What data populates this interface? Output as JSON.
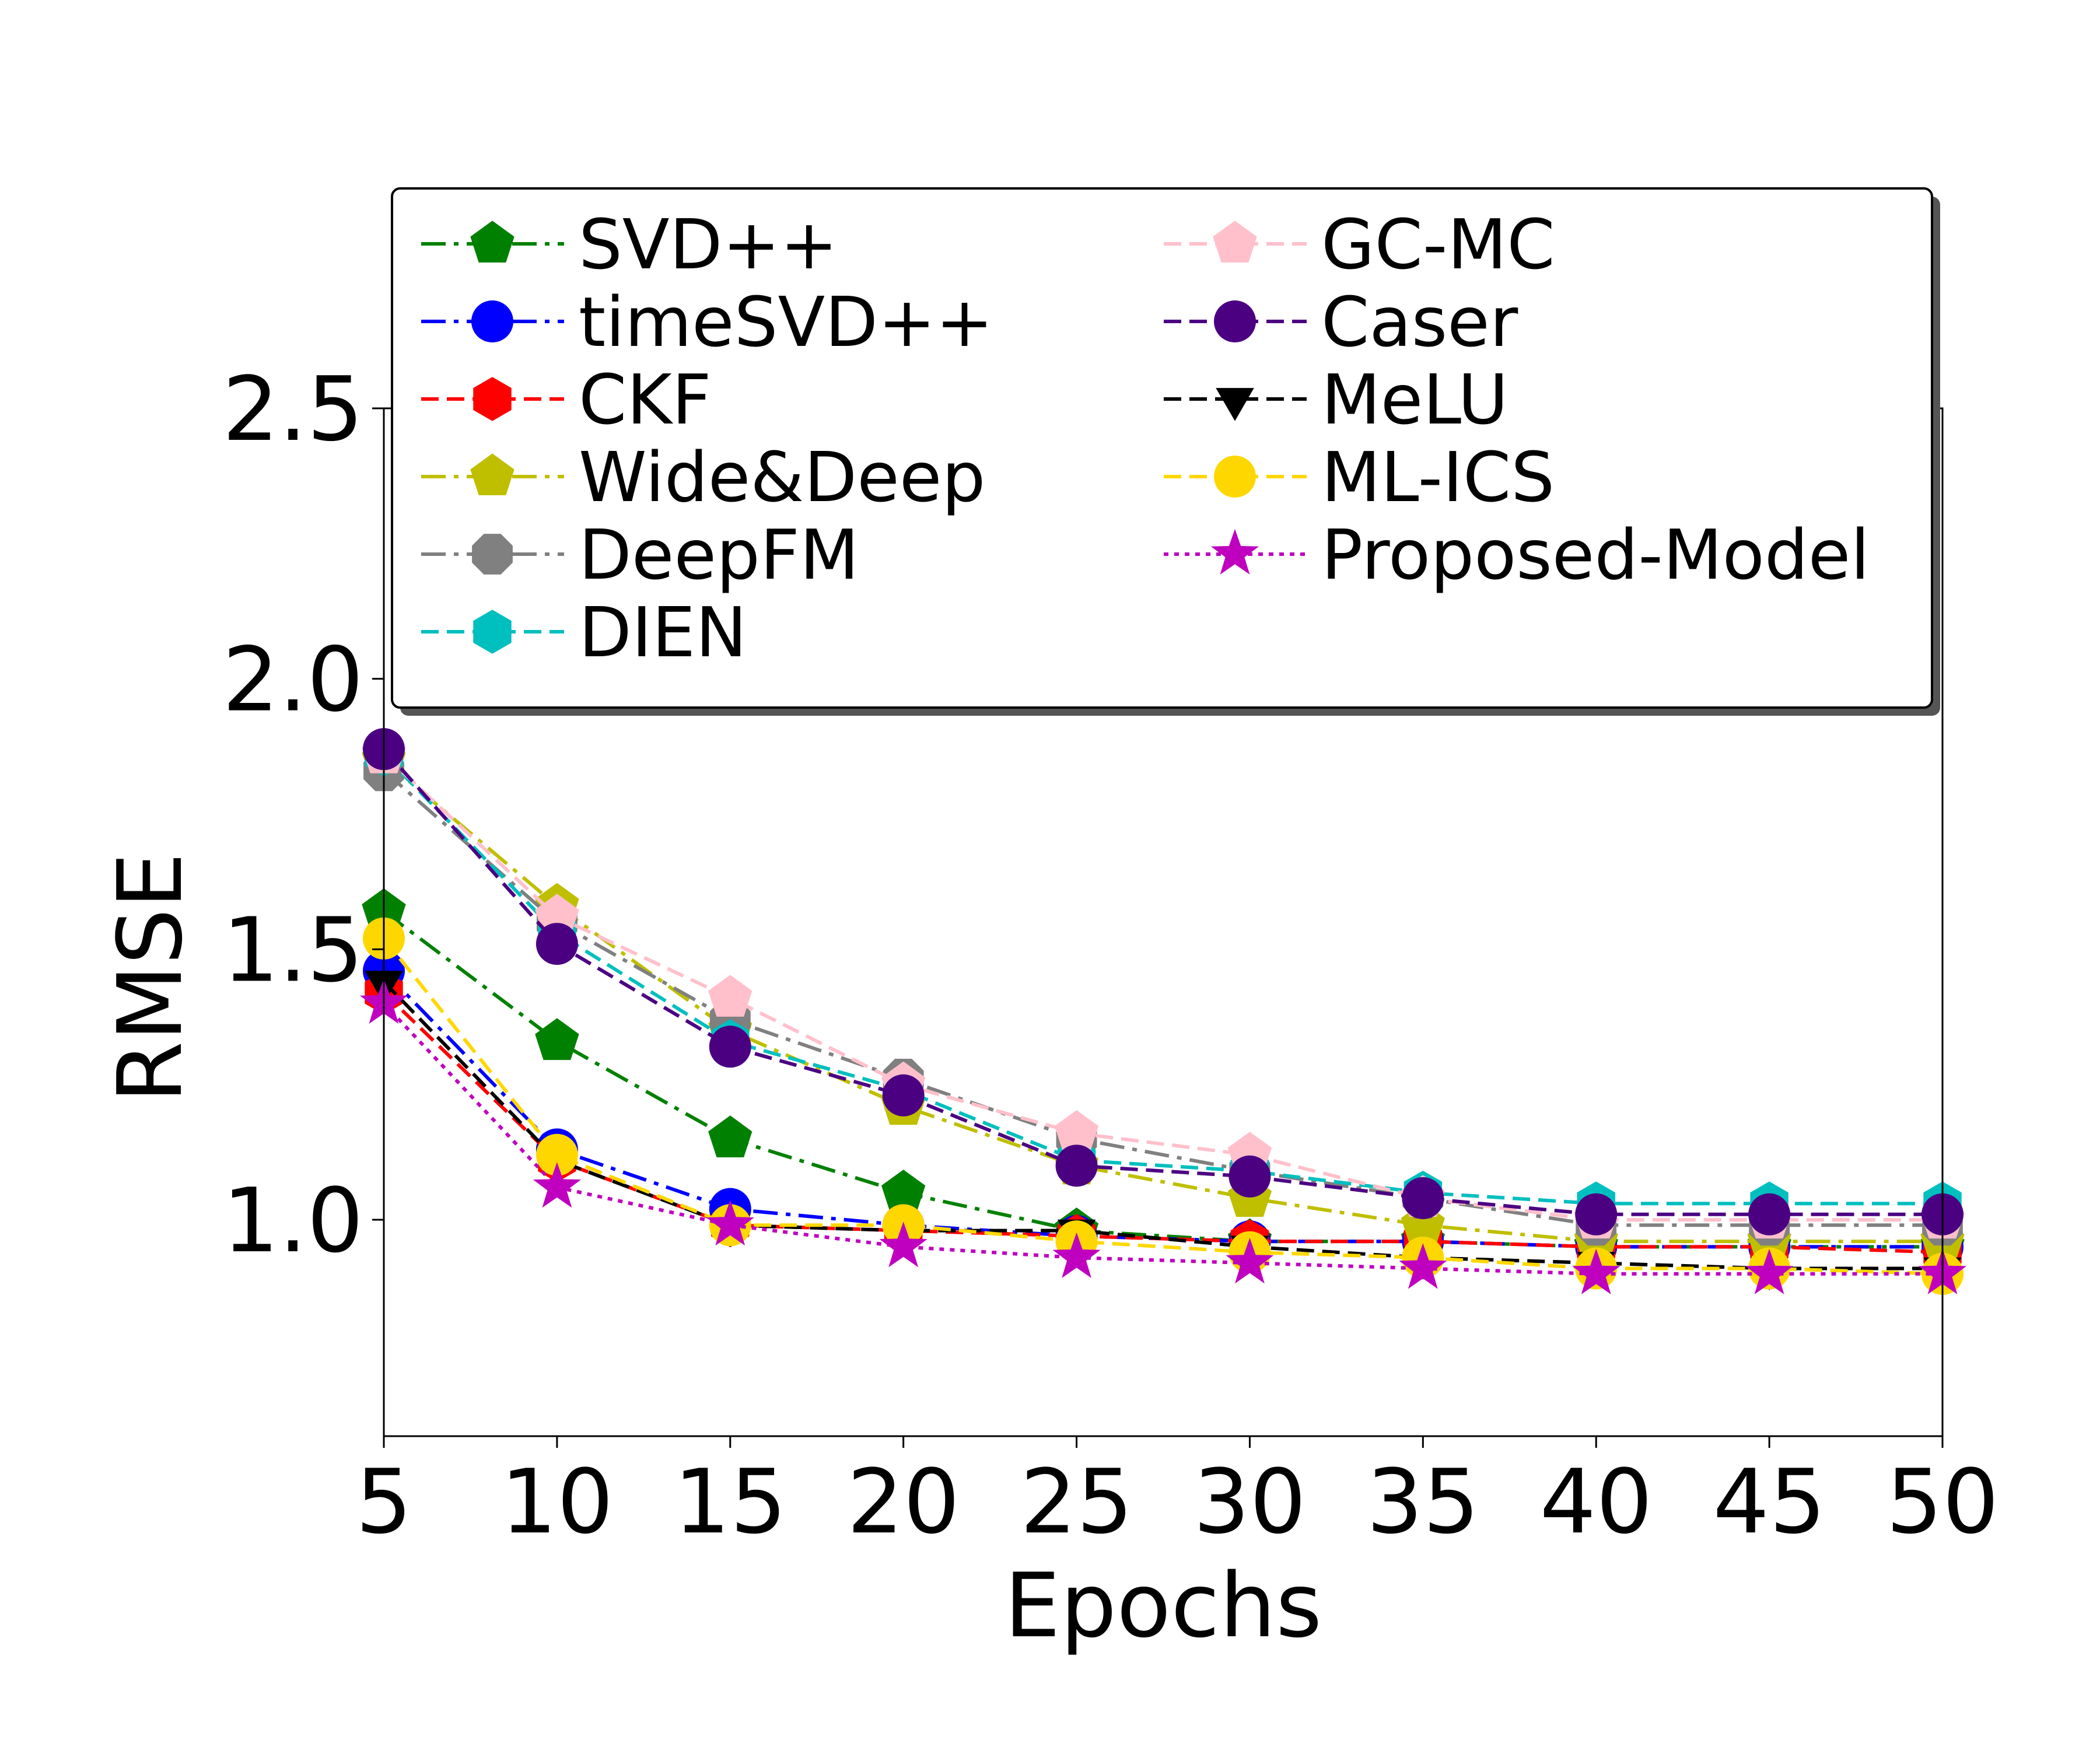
{
  "chart_data": {
    "type": "line",
    "title": "",
    "xlabel": "Epochs",
    "ylabel": "RMSE",
    "x": [
      5,
      10,
      15,
      20,
      25,
      30,
      35,
      40,
      45,
      50
    ],
    "xlim": [
      5,
      50
    ],
    "ylim": [
      0.6,
      2.5
    ],
    "xticks": [
      "5",
      "10",
      "15",
      "20",
      "25",
      "30",
      "35",
      "40",
      "45",
      "50"
    ],
    "yticks": [
      "1.0",
      "1.5",
      "2.0",
      "2.5"
    ],
    "ytick_values": [
      1.0,
      1.5,
      2.0,
      2.5
    ],
    "grid": false,
    "legend_position": "top",
    "series": [
      {
        "name": "SVD++",
        "color": "#008000",
        "marker": "pentagon",
        "linestyle": "dashdot",
        "values": [
          1.57,
          1.33,
          1.15,
          1.05,
          0.98,
          0.96,
          0.96,
          0.95,
          0.95,
          0.95
        ]
      },
      {
        "name": "timeSVD++",
        "color": "#0000ff",
        "marker": "circle",
        "linestyle": "dashdot",
        "values": [
          1.46,
          1.13,
          1.02,
          0.99,
          0.97,
          0.96,
          0.96,
          0.95,
          0.95,
          0.95
        ]
      },
      {
        "name": "CKF",
        "color": "#ff0000",
        "marker": "hexagon",
        "linestyle": "dashed",
        "values": [
          1.42,
          1.11,
          0.99,
          0.98,
          0.97,
          0.96,
          0.96,
          0.95,
          0.95,
          0.94
        ]
      },
      {
        "name": "Wide&Deep",
        "color": "#bfbf00",
        "marker": "pentagon",
        "linestyle": "dashdot",
        "values": [
          1.85,
          1.58,
          1.35,
          1.21,
          1.1,
          1.04,
          0.99,
          0.96,
          0.96,
          0.96
        ]
      },
      {
        "name": "DeepFM",
        "color": "#808080",
        "marker": "octagon",
        "linestyle": "dashdot",
        "values": [
          1.83,
          1.55,
          1.37,
          1.26,
          1.15,
          1.09,
          1.04,
          0.99,
          0.99,
          0.99
        ]
      },
      {
        "name": "DIEN",
        "color": "#00bfbf",
        "marker": "hexagon",
        "linestyle": "dashed",
        "values": [
          1.86,
          1.53,
          1.33,
          1.24,
          1.11,
          1.09,
          1.05,
          1.03,
          1.03,
          1.03
        ]
      },
      {
        "name": "GC-MC",
        "color": "#ffc0cb",
        "marker": "pentagon",
        "linestyle": "dashed",
        "values": [
          1.86,
          1.56,
          1.41,
          1.25,
          1.16,
          1.12,
          1.04,
          1.0,
          1.0,
          1.0
        ]
      },
      {
        "name": "Caser",
        "color": "#4b0082",
        "marker": "circle",
        "linestyle": "dashed",
        "values": [
          1.87,
          1.51,
          1.32,
          1.23,
          1.1,
          1.08,
          1.04,
          1.01,
          1.01,
          1.01
        ]
      },
      {
        "name": "MeLU",
        "color": "#000000",
        "marker": "triangle-down",
        "linestyle": "dashed",
        "values": [
          1.44,
          1.11,
          0.99,
          0.98,
          0.98,
          0.95,
          0.93,
          0.92,
          0.91,
          0.91
        ]
      },
      {
        "name": "ML-ICS",
        "color": "#ffd700",
        "marker": "circle",
        "linestyle": "dashed",
        "values": [
          1.52,
          1.12,
          0.99,
          0.99,
          0.96,
          0.94,
          0.93,
          0.91,
          0.91,
          0.9
        ]
      },
      {
        "name": "Proposed-Model",
        "color": "#bf00bf",
        "marker": "star",
        "linestyle": "dotted",
        "values": [
          1.4,
          1.06,
          0.99,
          0.95,
          0.93,
          0.92,
          0.91,
          0.9,
          0.9,
          0.9
        ]
      }
    ]
  }
}
